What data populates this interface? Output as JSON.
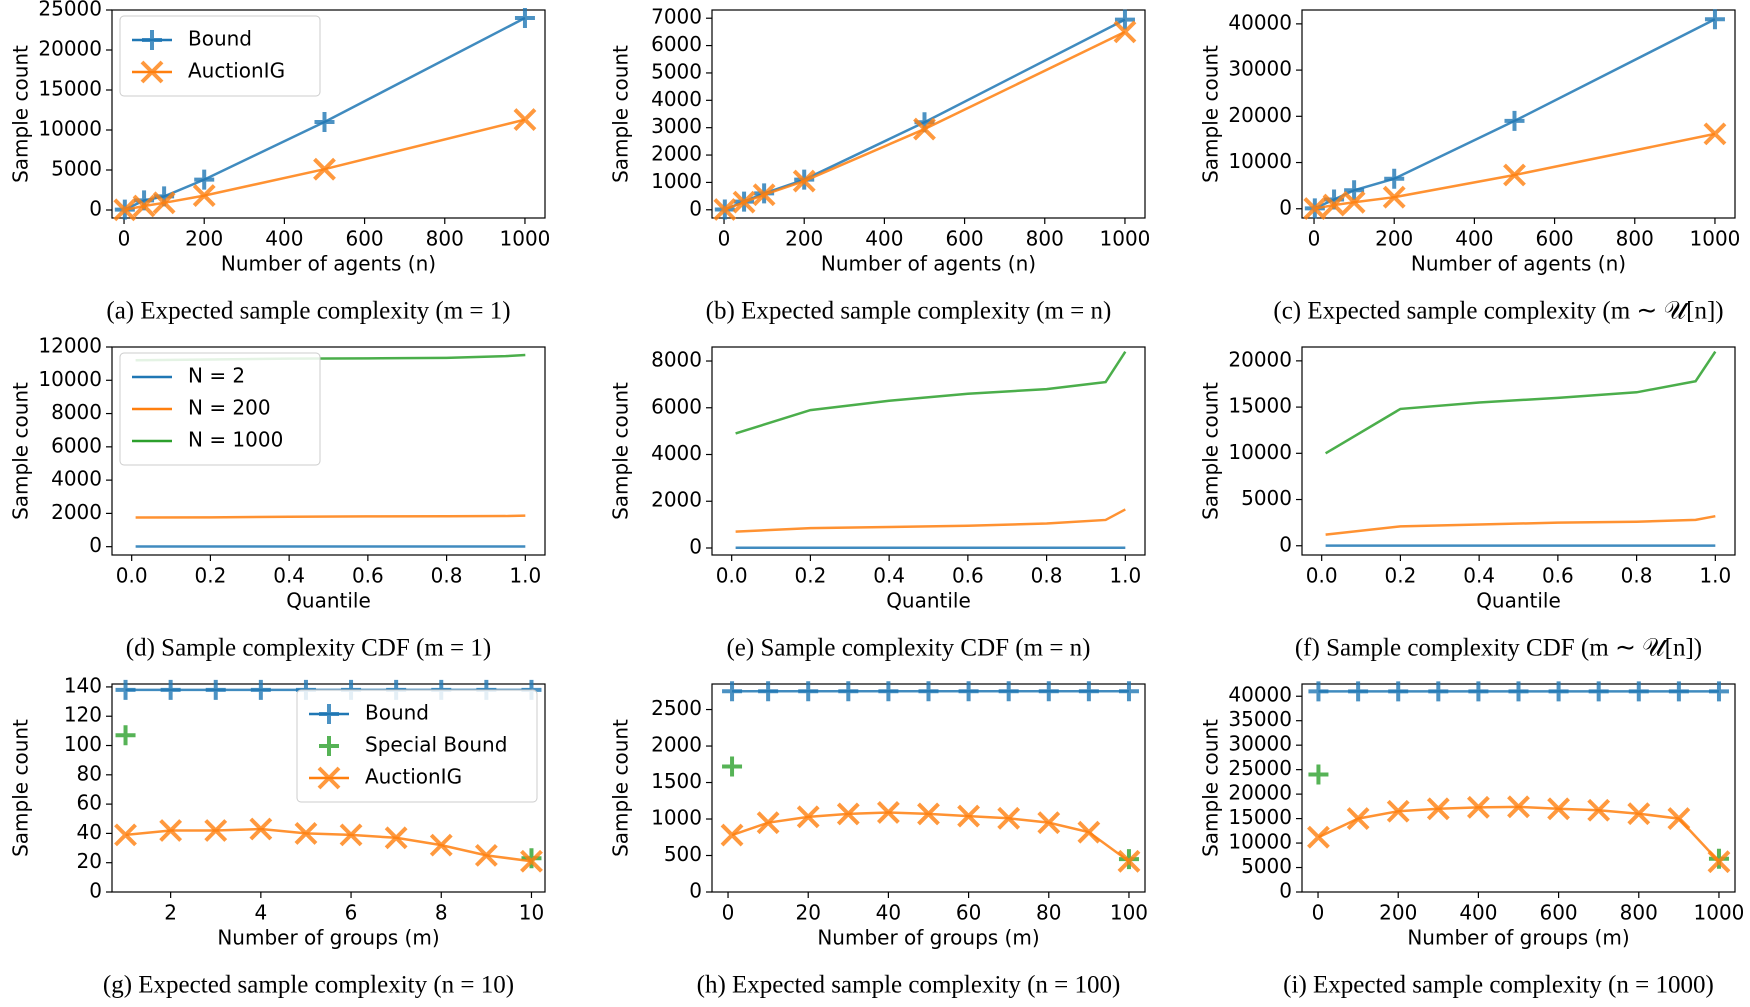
{
  "chart_data": [
    {
      "type": "line",
      "caption": "(a) Expected sample complexity (m = 1)",
      "xlabel": "Number of agents (n)",
      "ylabel": "Sample count",
      "x": [
        2,
        50,
        100,
        200,
        500,
        1000
      ],
      "xlim": [
        -30,
        1050
      ],
      "xticks": [
        0,
        200,
        400,
        600,
        800,
        1000
      ],
      "ylim": [
        -1000,
        25000
      ],
      "yticks": [
        0,
        5000,
        10000,
        15000,
        20000,
        25000
      ],
      "legend": "upper left",
      "series": [
        {
          "name": "Bound",
          "color": "#1f77b4",
          "marker": "+",
          "values": [
            50,
            1200,
            1700,
            3800,
            11000,
            24000
          ]
        },
        {
          "name": "AuctionIG",
          "color": "#ff7f0e",
          "marker": "x",
          "values": [
            20,
            500,
            900,
            1800,
            5100,
            11300
          ]
        }
      ]
    },
    {
      "type": "line",
      "caption": "(b) Expected sample complexity (m = n)",
      "xlabel": "Number of agents (n)",
      "ylabel": "Sample count",
      "x": [
        2,
        50,
        100,
        200,
        500,
        1000
      ],
      "xlim": [
        -30,
        1050
      ],
      "xticks": [
        0,
        200,
        400,
        600,
        800,
        1000
      ],
      "ylim": [
        -300,
        7300
      ],
      "yticks": [
        0,
        1000,
        2000,
        3000,
        4000,
        5000,
        6000,
        7000
      ],
      "series": [
        {
          "name": "Bound",
          "color": "#1f77b4",
          "marker": "+",
          "values": [
            10,
            300,
            600,
            1100,
            3200,
            6950
          ]
        },
        {
          "name": "AuctionIG",
          "color": "#ff7f0e",
          "marker": "x",
          "values": [
            10,
            280,
            550,
            1050,
            2950,
            6500
          ]
        }
      ]
    },
    {
      "type": "line",
      "caption": "(c) Expected sample complexity (m ∼ 𝒰[n])",
      "xlabel": "Number of agents (n)",
      "ylabel": "Sample count",
      "x": [
        2,
        50,
        100,
        200,
        500,
        1000
      ],
      "xlim": [
        -30,
        1050
      ],
      "xticks": [
        0,
        200,
        400,
        600,
        800,
        1000
      ],
      "ylim": [
        -2000,
        43000
      ],
      "yticks": [
        0,
        10000,
        20000,
        30000,
        40000
      ],
      "series": [
        {
          "name": "Bound",
          "color": "#1f77b4",
          "marker": "+",
          "values": [
            80,
            2000,
            4000,
            6500,
            19000,
            41000
          ]
        },
        {
          "name": "AuctionIG",
          "color": "#ff7f0e",
          "marker": "x",
          "values": [
            40,
            800,
            1400,
            2500,
            7300,
            16200
          ]
        }
      ]
    },
    {
      "type": "line",
      "caption": "(d) Sample complexity CDF (m = 1)",
      "xlabel": "Quantile",
      "ylabel": "Sample count",
      "x": [
        0.01,
        0.2,
        0.4,
        0.6,
        0.8,
        0.95,
        1.0
      ],
      "xlim": [
        -0.05,
        1.05
      ],
      "xticks": [
        {
          "value": 0,
          "label": "0.0"
        },
        0.2,
        0.4,
        0.6,
        0.8,
        {
          "value": 1,
          "label": "1.0"
        }
      ],
      "ylim": [
        -500,
        12000
      ],
      "yticks": [
        0,
        2000,
        4000,
        6000,
        8000,
        10000,
        12000
      ],
      "legend": "upper left",
      "series": [
        {
          "name": "N = 2",
          "color": "#1f77b4",
          "values": [
            10,
            10,
            10,
            10,
            10,
            10,
            10
          ]
        },
        {
          "name": "N = 200",
          "color": "#ff7f0e",
          "values": [
            1750,
            1760,
            1800,
            1820,
            1830,
            1840,
            1870
          ]
        },
        {
          "name": "N = 1000",
          "color": "#2ca02c",
          "values": [
            11200,
            11250,
            11300,
            11320,
            11350,
            11450,
            11520
          ]
        }
      ]
    },
    {
      "type": "line",
      "caption": "(e) Sample complexity CDF (m = n)",
      "xlabel": "Quantile",
      "ylabel": "Sample count",
      "x": [
        0.01,
        0.2,
        0.4,
        0.6,
        0.8,
        0.95,
        1.0
      ],
      "xlim": [
        -0.05,
        1.05
      ],
      "xticks": [
        {
          "value": 0,
          "label": "0.0"
        },
        0.2,
        0.4,
        0.6,
        0.8,
        {
          "value": 1,
          "label": "1.0"
        }
      ],
      "ylim": [
        -300,
        8600
      ],
      "yticks": [
        0,
        2000,
        4000,
        6000,
        8000
      ],
      "series": [
        {
          "name": "N = 2",
          "color": "#1f77b4",
          "values": [
            10,
            10,
            10,
            10,
            10,
            10,
            10
          ]
        },
        {
          "name": "N = 200",
          "color": "#ff7f0e",
          "values": [
            700,
            850,
            900,
            950,
            1050,
            1200,
            1650
          ]
        },
        {
          "name": "N = 1000",
          "color": "#2ca02c",
          "values": [
            4900,
            5900,
            6300,
            6600,
            6800,
            7100,
            8400
          ]
        }
      ]
    },
    {
      "type": "line",
      "caption": "(f) Sample complexity CDF (m ∼ 𝒰[n])",
      "xlabel": "Quantile",
      "ylabel": "Sample count",
      "x": [
        0.01,
        0.2,
        0.4,
        0.6,
        0.8,
        0.95,
        1.0
      ],
      "xlim": [
        -0.05,
        1.05
      ],
      "xticks": [
        {
          "value": 0,
          "label": "0.0"
        },
        0.2,
        0.4,
        0.6,
        0.8,
        {
          "value": 1,
          "label": "1.0"
        }
      ],
      "ylim": [
        -1000,
        21500
      ],
      "yticks": [
        0,
        5000,
        10000,
        15000,
        20000
      ],
      "series": [
        {
          "name": "N = 2",
          "color": "#1f77b4",
          "values": [
            10,
            10,
            10,
            10,
            10,
            10,
            10
          ]
        },
        {
          "name": "N = 200",
          "color": "#ff7f0e",
          "values": [
            1200,
            2100,
            2300,
            2500,
            2600,
            2800,
            3200
          ]
        },
        {
          "name": "N = 1000",
          "color": "#2ca02c",
          "values": [
            10000,
            14800,
            15500,
            16000,
            16600,
            17800,
            21000
          ]
        }
      ]
    },
    {
      "type": "line",
      "caption": "(g) Expected sample complexity (n = 10)",
      "xlabel": "Number of groups (m)",
      "ylabel": "Sample count",
      "x": [
        1,
        2,
        3,
        4,
        5,
        6,
        7,
        8,
        9,
        10
      ],
      "xlim": [
        0.7,
        10.3
      ],
      "xticks": [
        2,
        4,
        6,
        8,
        10
      ],
      "ylim": [
        0,
        142
      ],
      "yticks": [
        0,
        20,
        40,
        60,
        80,
        100,
        120,
        140
      ],
      "legend": "upper right",
      "series": [
        {
          "name": "Bound",
          "color": "#1f77b4",
          "marker": "+",
          "values": [
            138,
            138,
            138,
            138,
            138,
            138,
            138,
            138,
            138,
            138
          ]
        },
        {
          "name": "Special Bound",
          "color": "#2ca02c",
          "marker": "+",
          "line": false,
          "values": [
            107,
            null,
            null,
            null,
            null,
            null,
            null,
            null,
            null,
            23
          ]
        },
        {
          "name": "AuctionIG",
          "color": "#ff7f0e",
          "marker": "x",
          "values": [
            39,
            42,
            42,
            43,
            40,
            39,
            37,
            32,
            25,
            21
          ]
        }
      ]
    },
    {
      "type": "line",
      "caption": "(h) Expected sample complexity (n = 100)",
      "xlabel": "Number of groups (m)",
      "ylabel": "Sample count",
      "x": [
        1,
        10,
        20,
        30,
        40,
        50,
        60,
        70,
        80,
        90,
        100
      ],
      "xlim": [
        -4,
        104
      ],
      "xticks": [
        0,
        20,
        40,
        60,
        80,
        100
      ],
      "ylim": [
        0,
        2850
      ],
      "yticks": [
        0,
        500,
        1000,
        1500,
        2000,
        2500
      ],
      "series": [
        {
          "name": "Bound",
          "color": "#1f77b4",
          "marker": "+",
          "values": [
            2750,
            2750,
            2750,
            2750,
            2750,
            2750,
            2750,
            2750,
            2750,
            2750,
            2750
          ]
        },
        {
          "name": "Special Bound",
          "color": "#2ca02c",
          "marker": "+",
          "line": false,
          "values": [
            1720,
            null,
            null,
            null,
            null,
            null,
            null,
            null,
            null,
            null,
            450
          ]
        },
        {
          "name": "AuctionIG",
          "color": "#ff7f0e",
          "marker": "x",
          "values": [
            780,
            950,
            1030,
            1070,
            1090,
            1070,
            1040,
            1010,
            950,
            820,
            420
          ]
        }
      ]
    },
    {
      "type": "line",
      "caption": "(i) Expected sample complexity (n = 1000)",
      "xlabel": "Number of groups (m)",
      "ylabel": "Sample count",
      "x": [
        1,
        100,
        200,
        300,
        400,
        500,
        600,
        700,
        800,
        900,
        1000
      ],
      "xlim": [
        -40,
        1040
      ],
      "xticks": [
        0,
        200,
        400,
        600,
        800,
        1000
      ],
      "ylim": [
        0,
        42500
      ],
      "yticks": [
        0,
        5000,
        10000,
        15000,
        20000,
        25000,
        30000,
        35000,
        40000
      ],
      "series": [
        {
          "name": "Bound",
          "color": "#1f77b4",
          "marker": "+",
          "values": [
            41000,
            41000,
            41000,
            41000,
            41000,
            41000,
            41000,
            41000,
            41000,
            41000,
            41000
          ]
        },
        {
          "name": "Special Bound",
          "color": "#2ca02c",
          "marker": "+",
          "line": false,
          "values": [
            24000,
            null,
            null,
            null,
            null,
            null,
            null,
            null,
            null,
            null,
            6800
          ]
        },
        {
          "name": "AuctionIG",
          "color": "#ff7f0e",
          "marker": "x",
          "values": [
            11200,
            15000,
            16500,
            17000,
            17300,
            17400,
            17000,
            16700,
            16000,
            15000,
            6200
          ]
        }
      ]
    }
  ]
}
